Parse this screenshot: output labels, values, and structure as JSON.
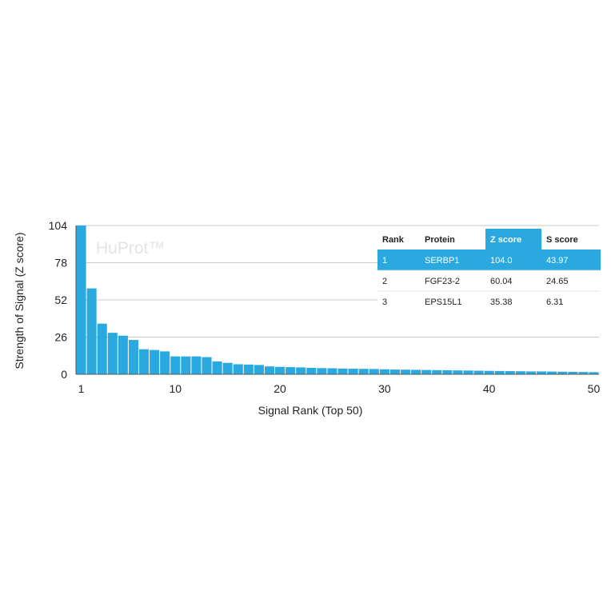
{
  "chart_data": {
    "type": "bar",
    "xlabel": "Signal Rank (Top 50)",
    "ylabel": "Strength of Signal (Z score)",
    "watermark": "HuProt™",
    "ylim": [
      0,
      104
    ],
    "yticks": [
      "0",
      "26",
      "52",
      "78",
      "104"
    ],
    "xticks": [
      "1",
      "10",
      "20",
      "30",
      "40",
      "50"
    ],
    "grid": true,
    "color": "#29a9df",
    "x": [
      1,
      2,
      3,
      4,
      5,
      6,
      7,
      8,
      9,
      10,
      11,
      12,
      13,
      14,
      15,
      16,
      17,
      18,
      19,
      20,
      21,
      22,
      23,
      24,
      25,
      26,
      27,
      28,
      29,
      30,
      31,
      32,
      33,
      34,
      35,
      36,
      37,
      38,
      39,
      40,
      41,
      42,
      43,
      44,
      45,
      46,
      47,
      48,
      49,
      50
    ],
    "values": [
      104.0,
      60.04,
      35.38,
      29,
      27,
      24,
      17.5,
      17,
      16,
      12.5,
      12.5,
      12.5,
      12,
      9,
      8,
      7,
      6.8,
      6.5,
      5.5,
      5.2,
      5,
      4.8,
      4.5,
      4.3,
      4.2,
      4,
      3.9,
      3.8,
      3.7,
      3.5,
      3.3,
      3.2,
      3.1,
      3,
      2.9,
      2.8,
      2.7,
      2.6,
      2.5,
      2.4,
      2.3,
      2.2,
      2.1,
      2,
      2,
      1.9,
      1.8,
      1.7,
      1.6,
      1.5
    ]
  },
  "table": {
    "headers": [
      "Rank",
      "Protein",
      "Z score",
      "S score"
    ],
    "rows": [
      [
        "1",
        "SERBP1",
        "104.0",
        "43.97"
      ],
      [
        "2",
        "FGF23-2",
        "60.04",
        "24.65"
      ],
      [
        "3",
        "EPS15L1",
        "35.38",
        "6.31"
      ]
    ],
    "highlight_color": "#29a9df"
  }
}
